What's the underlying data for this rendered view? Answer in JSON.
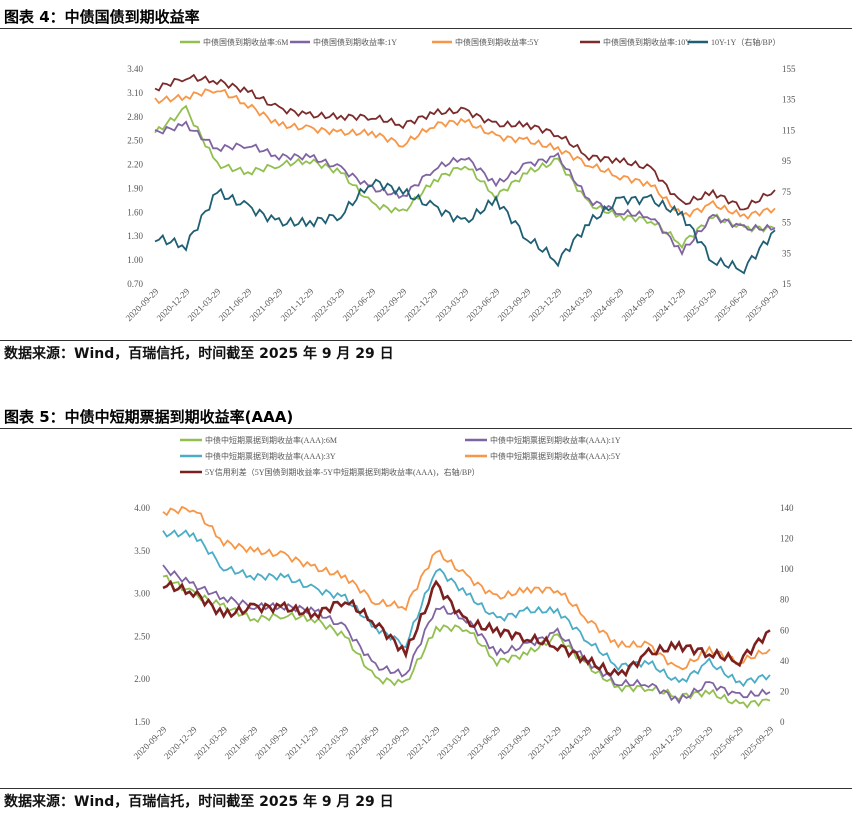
{
  "source_note": "数据来源：Wind，百瑞信托，时间截至 2025 年 9 月 29 日",
  "chart_data": [
    {
      "type": "line",
      "title": "图表 4：中债国债到期收益率",
      "x": [
        "2020-09-29",
        "2020-12-29",
        "2021-03-29",
        "2021-06-29",
        "2021-09-29",
        "2021-12-29",
        "2022-03-29",
        "2022-06-29",
        "2022-09-29",
        "2022-12-29",
        "2023-03-29",
        "2023-06-29",
        "2023-09-29",
        "2023-12-29",
        "2024-03-29",
        "2024-06-29",
        "2024-09-29",
        "2024-12-29",
        "2025-03-29",
        "2025-06-29",
        "2025-09-29"
      ],
      "ylim": [
        0.7,
        3.4
      ],
      "yticks": [
        "3.40",
        "3.10",
        "2.80",
        "2.50",
        "2.20",
        "1.90",
        "1.60",
        "1.30",
        "1.00",
        "0.70"
      ],
      "y2lim": [
        15,
        155
      ],
      "y2ticks": [
        "155",
        "135",
        "115",
        "95",
        "75",
        "55",
        "35",
        "15"
      ],
      "legend_position": "top",
      "series": [
        {
          "name": "中债国债到期收益率:6M",
          "color": "#92c050",
          "axis": "left",
          "values": [
            2.6,
            2.9,
            2.2,
            2.1,
            2.2,
            2.25,
            2.1,
            1.7,
            1.6,
            2.0,
            2.2,
            1.8,
            2.1,
            2.25,
            1.7,
            1.55,
            1.5,
            1.2,
            1.55,
            1.4,
            1.4
          ]
        },
        {
          "name": "中债国债到期收益率:1Y",
          "color": "#8064a2",
          "axis": "left",
          "values": [
            2.6,
            2.7,
            2.4,
            2.45,
            2.3,
            2.3,
            2.15,
            1.9,
            1.8,
            2.15,
            2.3,
            1.95,
            2.2,
            2.3,
            1.75,
            1.6,
            1.55,
            1.1,
            1.55,
            1.4,
            1.4
          ]
        },
        {
          "name": "中债国债到期收益率:5Y",
          "color": "#f79646",
          "axis": "left",
          "values": [
            3.0,
            3.05,
            3.15,
            2.95,
            2.7,
            2.65,
            2.6,
            2.6,
            2.45,
            2.7,
            2.75,
            2.55,
            2.5,
            2.4,
            2.2,
            2.05,
            1.95,
            1.55,
            1.7,
            1.55,
            1.65
          ]
        },
        {
          "name": "中债国债到期收益率:10Y",
          "color": "#7b2b2b",
          "axis": "left",
          "values": [
            3.15,
            3.3,
            3.25,
            3.12,
            2.9,
            2.82,
            2.8,
            2.8,
            2.7,
            2.85,
            2.88,
            2.7,
            2.7,
            2.58,
            2.3,
            2.25,
            2.15,
            1.7,
            1.85,
            1.65,
            1.88
          ]
        },
        {
          "name": "10Y-1Y（右轴/BP）",
          "color": "#1f5f73",
          "axis": "right",
          "values": [
            45,
            40,
            75,
            65,
            55,
            55,
            60,
            82,
            75,
            65,
            55,
            70,
            45,
            30,
            55,
            70,
            70,
            60,
            30,
            25,
            50
          ]
        }
      ]
    },
    {
      "type": "line",
      "title": "图表 5：中债中短期票据到期收益率(AAA)",
      "x": [
        "2020-09-29",
        "2020-12-29",
        "2021-03-29",
        "2021-06-29",
        "2021-09-29",
        "2021-12-29",
        "2022-03-29",
        "2022-06-29",
        "2022-09-29",
        "2022-12-29",
        "2023-03-29",
        "2023-06-29",
        "2023-09-29",
        "2023-12-29",
        "2024-03-29",
        "2024-06-29",
        "2024-09-29",
        "2024-12-29",
        "2025-03-29",
        "2025-06-29",
        "2025-09-29"
      ],
      "ylim": [
        1.5,
        4.0
      ],
      "yticks": [
        "4.00",
        "3.50",
        "3.00",
        "2.50",
        "2.00",
        "1.50"
      ],
      "y2lim": [
        0,
        140
      ],
      "y2ticks": [
        "140",
        "120",
        "100",
        "80",
        "60",
        "40",
        "20",
        "0"
      ],
      "legend_position": "top",
      "series": [
        {
          "name": "中债中短期票据到期收益率(AAA):6M",
          "color": "#92c050",
          "axis": "left",
          "values": [
            3.2,
            3.0,
            2.85,
            2.7,
            2.75,
            2.7,
            2.5,
            2.0,
            1.95,
            2.6,
            2.6,
            2.2,
            2.3,
            2.5,
            2.15,
            1.9,
            1.9,
            1.8,
            1.85,
            1.7,
            1.75
          ]
        },
        {
          "name": "中债中短期票据到期收益率(AAA):1Y",
          "color": "#8064a2",
          "axis": "left",
          "values": [
            3.3,
            3.1,
            2.95,
            2.85,
            2.85,
            2.8,
            2.6,
            2.15,
            2.05,
            2.85,
            2.7,
            2.3,
            2.4,
            2.55,
            2.2,
            1.95,
            1.95,
            1.75,
            1.95,
            1.8,
            1.85
          ]
        },
        {
          "name": "中债中短期票据到期收益率(AAA):3Y",
          "color": "#4bacc6",
          "axis": "left",
          "values": [
            3.7,
            3.7,
            3.3,
            3.2,
            3.2,
            3.05,
            2.95,
            2.6,
            2.4,
            3.3,
            3.0,
            2.7,
            2.8,
            2.8,
            2.45,
            2.15,
            2.2,
            1.95,
            2.2,
            1.95,
            2.05
          ]
        },
        {
          "name": "中债中短期票据到期收益率(AAA):5Y",
          "color": "#f79646",
          "axis": "left",
          "values": [
            3.95,
            4.0,
            3.6,
            3.5,
            3.45,
            3.3,
            3.2,
            2.9,
            2.85,
            3.5,
            3.2,
            2.95,
            3.05,
            3.05,
            2.7,
            2.4,
            2.4,
            2.1,
            2.35,
            2.2,
            2.35
          ]
        },
        {
          "name": "5Y信用利差（5Y国债到期收益率-5Y中短期票据到期收益率(AAA)，右轴/BP）",
          "color": "#7b1f1f",
          "axis": "right",
          "values": [
            90,
            85,
            70,
            75,
            75,
            70,
            80,
            65,
            45,
            90,
            65,
            60,
            55,
            50,
            40,
            30,
            45,
            50,
            45,
            40,
            60
          ]
        }
      ]
    }
  ]
}
